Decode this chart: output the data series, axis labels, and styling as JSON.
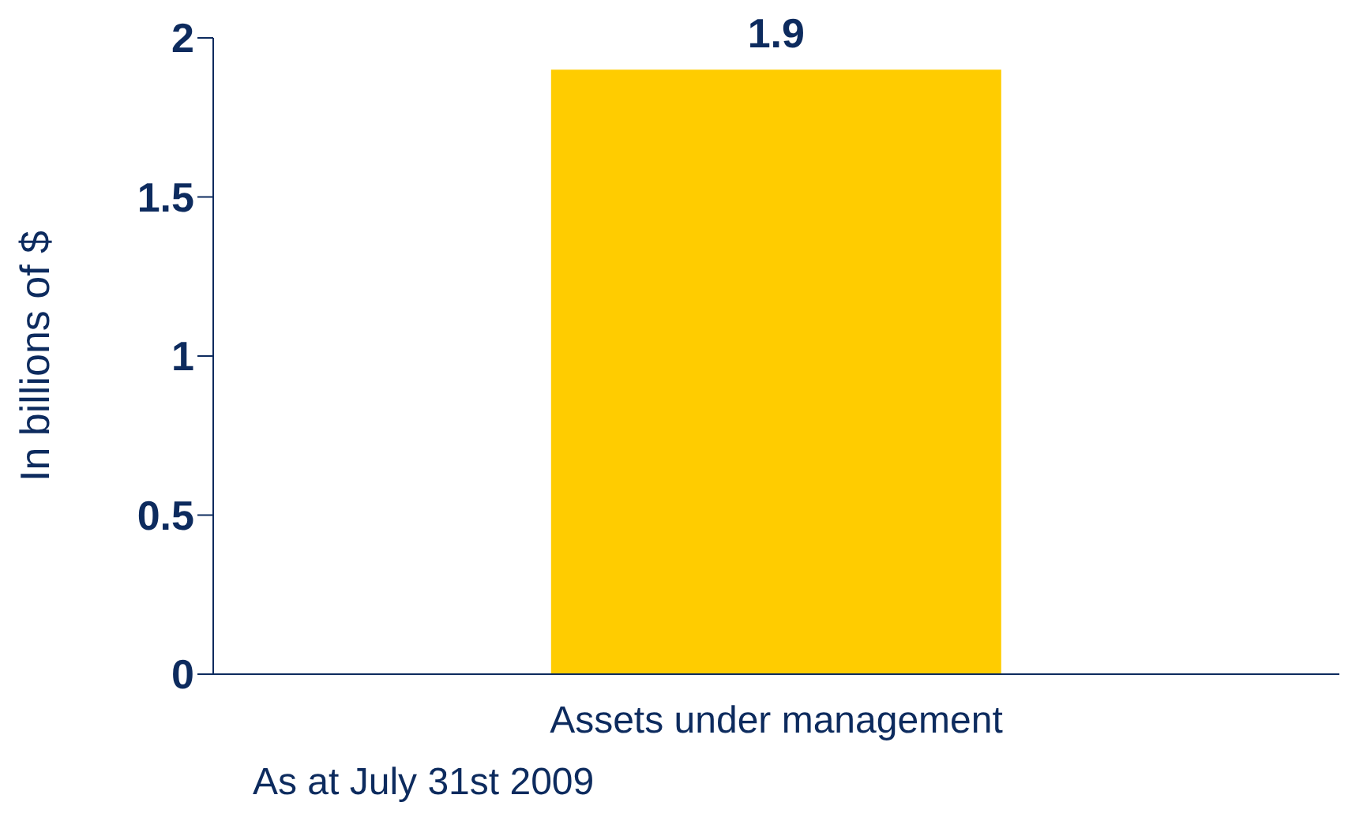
{
  "chart_data": {
    "type": "bar",
    "ylabel": "In billions of $",
    "categories": [
      "Assets under management"
    ],
    "values": [
      1.9
    ],
    "color": "#ffcc00",
    "ylim": [
      0,
      2
    ],
    "yticks": [
      0,
      0.5,
      1,
      1.5,
      2
    ],
    "grid": false,
    "data_labels": true,
    "annotations": [
      "As at July 31st 2009"
    ]
  }
}
